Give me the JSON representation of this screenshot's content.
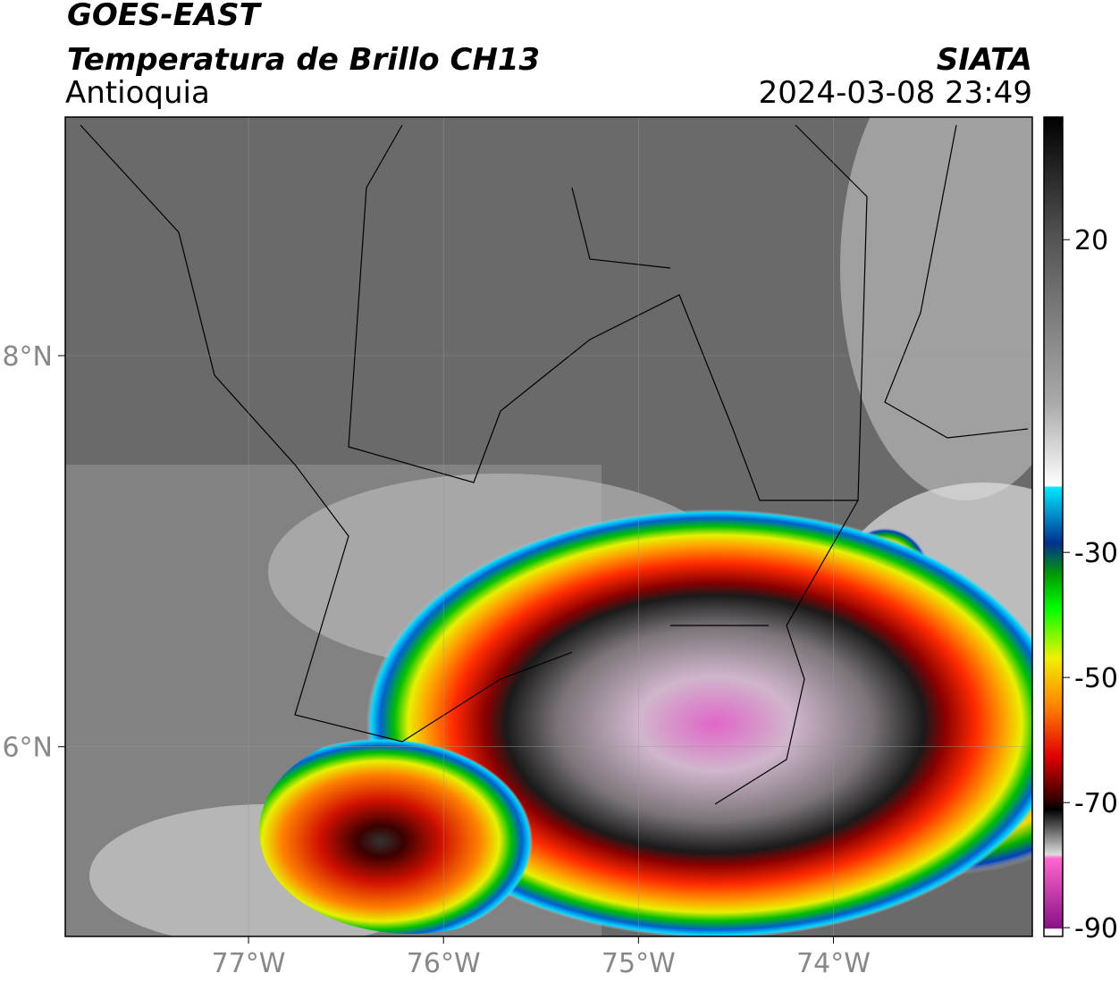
{
  "header": {
    "title": "GOES-EAST",
    "subtitle": "Temperatura de Brillo CH13",
    "region": "Antioquia",
    "source": "SIATA",
    "datetime": "2024-03-08 23:49"
  },
  "map": {
    "xlim": [
      -77.94,
      -72.98
    ],
    "ylim": [
      5.03,
      9.22
    ],
    "xticks": [
      {
        "value": -77,
        "label": "77°W"
      },
      {
        "value": -76,
        "label": "76°W"
      },
      {
        "value": -75,
        "label": "75°W"
      },
      {
        "value": -74,
        "label": "74°W"
      }
    ],
    "yticks": [
      {
        "value": 6,
        "label": "6°N"
      },
      {
        "value": 8,
        "label": "8°N"
      }
    ]
  },
  "colorbar": {
    "range": [
      -91.4,
      39.6
    ],
    "ticks": [
      20,
      -30,
      -50,
      -70,
      -90
    ]
  }
}
